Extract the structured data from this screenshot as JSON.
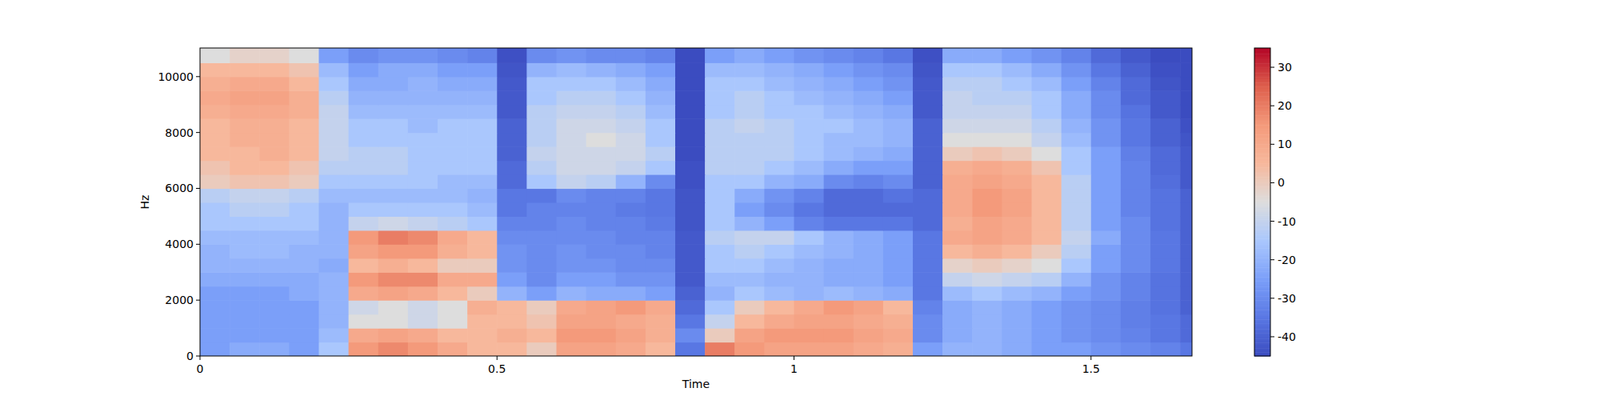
{
  "chart_data": {
    "type": "heatmap",
    "xlabel": "Time",
    "ylabel": "Hz",
    "xlim": [
      0,
      1.67
    ],
    "xticks": [
      0,
      0.5,
      1,
      1.5
    ],
    "ylim": [
      0,
      11025
    ],
    "yticks": [
      0,
      2000,
      4000,
      6000,
      8000,
      10000
    ],
    "x": [
      0,
      0.05,
      0.1,
      0.15,
      0.2,
      0.25,
      0.3,
      0.35,
      0.4,
      0.45,
      0.5,
      0.55,
      0.6,
      0.65,
      0.7,
      0.75,
      0.8,
      0.85,
      0.9,
      0.95,
      1,
      1.05,
      1.1,
      1.15,
      1.2,
      1.25,
      1.3,
      1.35,
      1.4,
      1.45,
      1.5,
      1.55,
      1.6,
      1.65
    ],
    "y": [
      0,
      500,
      1000,
      1500,
      2000,
      2500,
      3000,
      3500,
      4000,
      4500,
      5000,
      5500,
      6000,
      6500,
      7000,
      7500,
      8000,
      8500,
      9000,
      9500,
      10000,
      10500
    ],
    "values": [
      [
        -25,
        -22,
        -22,
        -25,
        -15,
        15,
        18,
        15,
        10,
        5,
        5,
        0,
        12,
        12,
        10,
        5,
        -35,
        20,
        15,
        12,
        12,
        12,
        10,
        8,
        -25,
        -20,
        -20,
        -22,
        -25,
        -25,
        -28,
        -30,
        -32,
        -35
      ],
      [
        -25,
        -25,
        -25,
        -25,
        -18,
        10,
        12,
        10,
        5,
        5,
        8,
        5,
        15,
        15,
        12,
        8,
        -30,
        0,
        12,
        15,
        15,
        15,
        12,
        10,
        -30,
        -22,
        -20,
        -22,
        -25,
        -28,
        -30,
        -32,
        -35,
        -38
      ],
      [
        -25,
        -25,
        -25,
        -25,
        -20,
        -5,
        -5,
        -8,
        -5,
        5,
        5,
        2,
        12,
        12,
        10,
        8,
        -35,
        -10,
        5,
        10,
        12,
        12,
        10,
        8,
        -30,
        -22,
        -20,
        -22,
        -25,
        -28,
        -30,
        -33,
        -35,
        -38
      ],
      [
        -25,
        -25,
        -25,
        -25,
        -20,
        -8,
        -5,
        -8,
        -5,
        8,
        5,
        0,
        10,
        12,
        15,
        10,
        -38,
        -15,
        0,
        5,
        10,
        15,
        12,
        5,
        -32,
        -22,
        -20,
        -22,
        -25,
        -28,
        -30,
        -33,
        -36,
        -40
      ],
      [
        -25,
        -25,
        -25,
        -22,
        -20,
        10,
        12,
        10,
        5,
        0,
        -20,
        -25,
        -20,
        -22,
        -22,
        -25,
        -40,
        -20,
        -15,
        -18,
        -20,
        -18,
        -20,
        -22,
        -35,
        -18,
        -15,
        -18,
        -20,
        -25,
        -28,
        -32,
        -36,
        -40
      ],
      [
        -22,
        -22,
        -22,
        -22,
        -20,
        15,
        18,
        18,
        10,
        10,
        -25,
        -30,
        -25,
        -25,
        -28,
        -28,
        -42,
        -18,
        -18,
        -20,
        -20,
        -22,
        -22,
        -25,
        -35,
        -10,
        -8,
        -10,
        -12,
        -20,
        -28,
        -32,
        -36,
        -40
      ],
      [
        -20,
        -20,
        -20,
        -20,
        -22,
        5,
        8,
        5,
        0,
        0,
        -28,
        -30,
        -28,
        -28,
        -30,
        -30,
        -42,
        -15,
        -15,
        -18,
        -20,
        -22,
        -22,
        -25,
        -35,
        -2,
        0,
        -2,
        -5,
        -15,
        -25,
        -30,
        -35,
        -40
      ],
      [
        -20,
        -18,
        -18,
        -20,
        -20,
        12,
        15,
        15,
        8,
        5,
        -28,
        -30,
        -28,
        -30,
        -30,
        -32,
        -42,
        -15,
        -12,
        -15,
        -18,
        -20,
        -22,
        -25,
        -35,
        5,
        8,
        5,
        0,
        -12,
        -25,
        -30,
        -35,
        -40
      ],
      [
        -18,
        -18,
        -18,
        -18,
        -20,
        15,
        20,
        18,
        10,
        5,
        -30,
        -30,
        -30,
        -30,
        -32,
        -32,
        -42,
        -12,
        -10,
        -10,
        -15,
        -20,
        -22,
        -25,
        -35,
        10,
        12,
        10,
        5,
        -10,
        -22,
        -30,
        -35,
        -40
      ],
      [
        -15,
        -15,
        -15,
        -15,
        -20,
        -10,
        -8,
        -10,
        -12,
        -15,
        -32,
        -32,
        -30,
        -32,
        -32,
        -34,
        -43,
        -15,
        -20,
        -25,
        -32,
        -35,
        -35,
        -35,
        -38,
        8,
        12,
        10,
        5,
        -12,
        -25,
        -30,
        -36,
        -40
      ],
      [
        -15,
        -12,
        -12,
        -15,
        -20,
        -15,
        -15,
        -15,
        -15,
        -18,
        -35,
        -32,
        -32,
        -32,
        -34,
        -35,
        -43,
        -15,
        -25,
        -30,
        -35,
        -38,
        -38,
        -38,
        -38,
        10,
        15,
        12,
        5,
        -12,
        -25,
        -32,
        -36,
        -40
      ],
      [
        -12,
        -10,
        -10,
        -12,
        -18,
        -18,
        -18,
        -18,
        -18,
        -20,
        -35,
        -35,
        -30,
        -32,
        -32,
        -35,
        -43,
        -15,
        -22,
        -28,
        -32,
        -38,
        -38,
        -36,
        -38,
        10,
        15,
        12,
        5,
        -12,
        -25,
        -32,
        -36,
        -40
      ],
      [
        0,
        2,
        2,
        0,
        -15,
        -15,
        -15,
        -15,
        -18,
        -18,
        -38,
        -15,
        -10,
        -12,
        -20,
        -30,
        -44,
        -15,
        -15,
        -20,
        -22,
        -30,
        -32,
        -30,
        -40,
        10,
        12,
        10,
        5,
        -12,
        -25,
        -32,
        -37,
        -42
      ],
      [
        2,
        5,
        5,
        2,
        -12,
        -12,
        -12,
        -15,
        -15,
        -15,
        -38,
        -12,
        -8,
        -8,
        -10,
        -15,
        -44,
        -12,
        -12,
        -15,
        -18,
        -22,
        -25,
        -25,
        -40,
        8,
        10,
        8,
        2,
        -15,
        -25,
        -32,
        -38,
        -42
      ],
      [
        5,
        5,
        8,
        5,
        -10,
        -12,
        -12,
        -15,
        -15,
        -15,
        -40,
        -10,
        -8,
        -8,
        -8,
        -12,
        -45,
        -12,
        -12,
        -12,
        -15,
        -18,
        -20,
        -22,
        -40,
        0,
        2,
        0,
        -5,
        -15,
        -25,
        -33,
        -38,
        -42
      ],
      [
        5,
        8,
        8,
        5,
        -10,
        -15,
        -15,
        -15,
        -15,
        -15,
        -40,
        -12,
        -8,
        -5,
        -8,
        -15,
        -45,
        -12,
        -12,
        -12,
        -15,
        -18,
        -18,
        -20,
        -40,
        -5,
        -5,
        -5,
        -10,
        -18,
        -28,
        -35,
        -40,
        -43
      ],
      [
        5,
        8,
        8,
        5,
        -10,
        -15,
        -15,
        -18,
        -15,
        -15,
        -40,
        -12,
        -8,
        -8,
        -10,
        -15,
        -45,
        -12,
        -10,
        -12,
        -15,
        -15,
        -18,
        -20,
        -40,
        -8,
        -8,
        -8,
        -12,
        -20,
        -28,
        -35,
        -40,
        -44
      ],
      [
        8,
        10,
        10,
        8,
        -10,
        -18,
        -18,
        -18,
        -18,
        -18,
        -42,
        -12,
        -10,
        -10,
        -12,
        -18,
        -45,
        -15,
        -12,
        -15,
        -15,
        -18,
        -20,
        -22,
        -42,
        -10,
        -10,
        -10,
        -15,
        -22,
        -30,
        -36,
        -42,
        -45
      ],
      [
        10,
        12,
        12,
        8,
        -12,
        -20,
        -20,
        -20,
        -20,
        -20,
        -42,
        -15,
        -12,
        -12,
        -15,
        -20,
        -45,
        -15,
        -12,
        -15,
        -18,
        -20,
        -22,
        -25,
        -42,
        -10,
        -12,
        -12,
        -15,
        -22,
        -30,
        -38,
        -42,
        -45
      ],
      [
        8,
        10,
        10,
        5,
        -15,
        -22,
        -22,
        -20,
        -22,
        -22,
        -42,
        -15,
        -15,
        -15,
        -18,
        -22,
        -45,
        -15,
        -15,
        -18,
        -20,
        -22,
        -25,
        -28,
        -42,
        -12,
        -12,
        -15,
        -18,
        -25,
        -32,
        -38,
        -43,
        -45
      ],
      [
        5,
        5,
        5,
        2,
        -18,
        -25,
        -22,
        -22,
        -25,
        -25,
        -43,
        -20,
        -18,
        -20,
        -22,
        -25,
        -45,
        -18,
        -18,
        -20,
        -22,
        -25,
        -28,
        -30,
        -43,
        -15,
        -15,
        -18,
        -22,
        -28,
        -35,
        -40,
        -44,
        -45
      ],
      [
        -5,
        -2,
        -2,
        -5,
        -25,
        -30,
        -28,
        -28,
        -30,
        -32,
        -44,
        -30,
        -28,
        -30,
        -30,
        -32,
        -45,
        -25,
        -22,
        -25,
        -28,
        -30,
        -32,
        -35,
        -44,
        -22,
        -22,
        -25,
        -28,
        -32,
        -38,
        -42,
        -45,
        -45
      ]
    ],
    "colorbar": {
      "range": [
        -45,
        35
      ],
      "ticks": [
        -40,
        -30,
        -20,
        -10,
        0,
        10,
        20,
        30
      ]
    }
  }
}
